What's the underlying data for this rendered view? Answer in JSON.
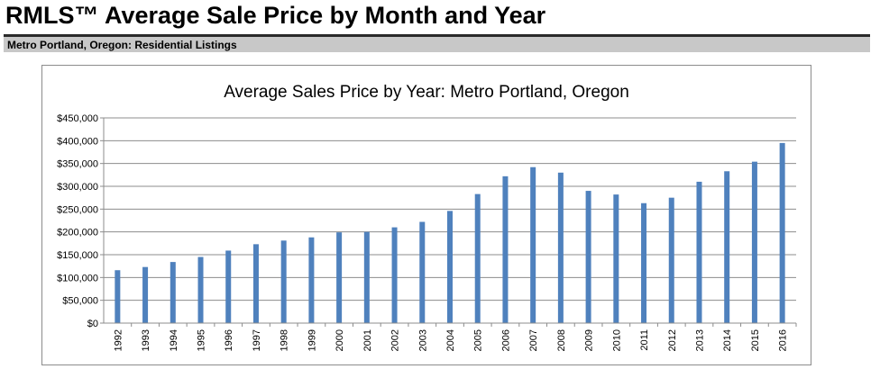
{
  "header": {
    "title": "RMLS™ Average Sale Price by Month and Year",
    "subtitle": "Metro Portland, Oregon: Residential Listings"
  },
  "colors": {
    "bar": "#4f81bd",
    "gridline": "#8c8c8c",
    "subtitle_bar_bg": "#c8c8c8"
  },
  "chart_data": {
    "type": "bar",
    "title": "Average Sales Price by Year: Metro Portland, Oregon",
    "xlabel": "",
    "ylabel": "",
    "ylim": [
      0,
      450000
    ],
    "y_ticks": [
      0,
      50000,
      100000,
      150000,
      200000,
      250000,
      300000,
      350000,
      400000,
      450000
    ],
    "y_tick_labels": [
      "$0",
      "$50,000",
      "$100,000",
      "$150,000",
      "$200,000",
      "$250,000",
      "$300,000",
      "$350,000",
      "$400,000",
      "$450,000"
    ],
    "grid": true,
    "legend": "none",
    "categories": [
      "1992",
      "1993",
      "1994",
      "1995",
      "1996",
      "1997",
      "1998",
      "1999",
      "2000",
      "2001",
      "2002",
      "2003",
      "2004",
      "2005",
      "2006",
      "2007",
      "2008",
      "2009",
      "2010",
      "2011",
      "2012",
      "2013",
      "2014",
      "2015",
      "2016"
    ],
    "values": [
      116000,
      123000,
      134000,
      145000,
      159000,
      173000,
      181000,
      188000,
      199000,
      200000,
      210000,
      222000,
      246000,
      283000,
      322000,
      342000,
      330000,
      290000,
      282000,
      263000,
      275000,
      310000,
      333000,
      354000,
      395000
    ]
  }
}
